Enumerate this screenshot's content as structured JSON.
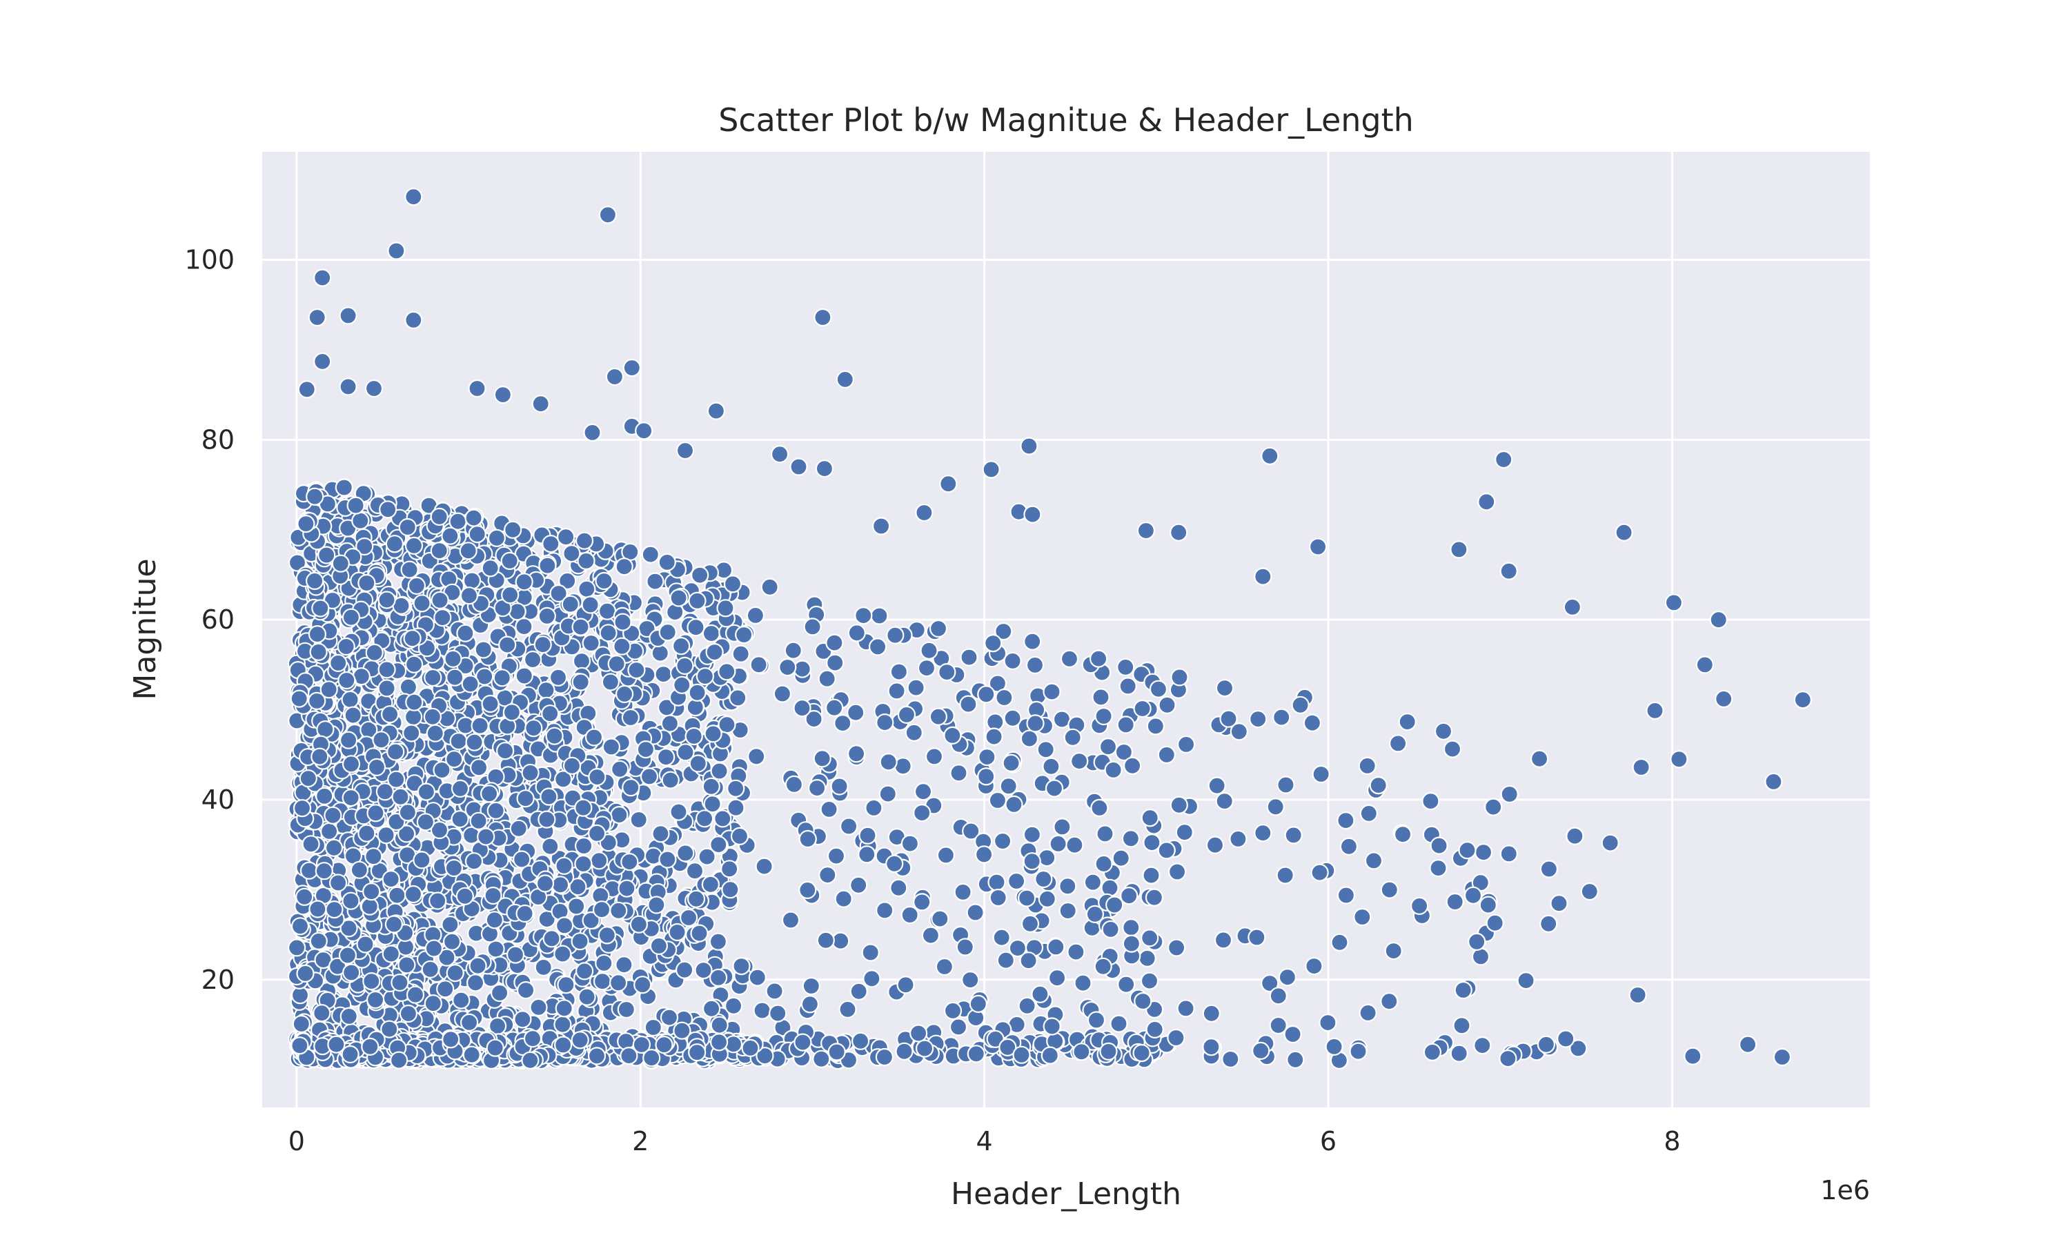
{
  "chart_data": {
    "type": "scatter",
    "title": "Scatter Plot b/w Magnitue & Header_Length",
    "xlabel": "Header_Length",
    "ylabel": "Magnitue",
    "x_offset_label": "1e6",
    "x_scale": 1000000,
    "xlim": [
      -200000,
      9150000
    ],
    "ylim": [
      5.8,
      112
    ],
    "x_ticks": [
      0,
      2000000,
      4000000,
      6000000,
      8000000
    ],
    "x_tick_labels": [
      "0",
      "2",
      "4",
      "6",
      "8"
    ],
    "y_ticks": [
      20,
      40,
      60,
      80,
      100
    ],
    "y_tick_labels": [
      "20",
      "40",
      "60",
      "80",
      "100"
    ],
    "grid": true,
    "colors": {
      "background": "#EAEAF2",
      "grid": "#FFFFFF",
      "marker": "#4C72B0",
      "marker_edge": "#FFFFFF",
      "text": "#262626"
    },
    "series": [
      {
        "outliers": [
          [
            680000,
            107
          ],
          [
            1810000,
            105
          ],
          [
            580000,
            101
          ],
          [
            150000,
            98
          ],
          [
            120000,
            93.6
          ],
          [
            300000,
            93.8
          ],
          [
            680000,
            93.3
          ],
          [
            3060000,
            93.6
          ],
          [
            3190000,
            86.7
          ],
          [
            1850000,
            87
          ],
          [
            1950000,
            88
          ],
          [
            150000,
            88.7
          ],
          [
            60000,
            85.6
          ],
          [
            300000,
            85.9
          ],
          [
            450000,
            85.7
          ],
          [
            1050000,
            85.7
          ],
          [
            1200000,
            85
          ],
          [
            1420000,
            84
          ],
          [
            2440000,
            83.2
          ],
          [
            1950000,
            81.5
          ],
          [
            2020000,
            81
          ],
          [
            1720000,
            80.8
          ],
          [
            2260000,
            78.8
          ],
          [
            2810000,
            78.4
          ],
          [
            2920000,
            77
          ],
          [
            3070000,
            76.8
          ],
          [
            4040000,
            76.7
          ],
          [
            3790000,
            75.1
          ],
          [
            4260000,
            79.3
          ],
          [
            5660000,
            78.2
          ],
          [
            7020000,
            77.8
          ],
          [
            6920000,
            73.1
          ],
          [
            7720000,
            69.7
          ],
          [
            4940000,
            69.9
          ],
          [
            5130000,
            69.7
          ],
          [
            5940000,
            68.1
          ],
          [
            6760000,
            67.8
          ],
          [
            7050000,
            65.4
          ],
          [
            5620000,
            64.8
          ],
          [
            4200000,
            72
          ],
          [
            4280000,
            71.7
          ],
          [
            3650000,
            71.9
          ],
          [
            3400000,
            70.4
          ],
          [
            8010000,
            61.9
          ],
          [
            8270000,
            60
          ],
          [
            7420000,
            61.4
          ],
          [
            8190000,
            55
          ],
          [
            8300000,
            51.2
          ],
          [
            8760000,
            51.1
          ],
          [
            7900000,
            49.9
          ],
          [
            7820000,
            43.6
          ],
          [
            8040000,
            44.5
          ],
          [
            8590000,
            42
          ],
          [
            7640000,
            35.2
          ],
          [
            7520000,
            29.8
          ],
          [
            7800000,
            18.3
          ],
          [
            7150000,
            19.9
          ],
          [
            8440000,
            12.8
          ],
          [
            8120000,
            11.5
          ],
          [
            8640000,
            11.4
          ],
          [
            6380000,
            23.2
          ],
          [
            5710000,
            18.2
          ],
          [
            5390000,
            24.4
          ],
          [
            5750000,
            31.6
          ],
          [
            5950000,
            31.9
          ],
          [
            6120000,
            34.8
          ],
          [
            6640000,
            32.4
          ],
          [
            6930000,
            28.3
          ],
          [
            6970000,
            26.3
          ],
          [
            6530000,
            28.2
          ]
        ]
      }
    ]
  }
}
